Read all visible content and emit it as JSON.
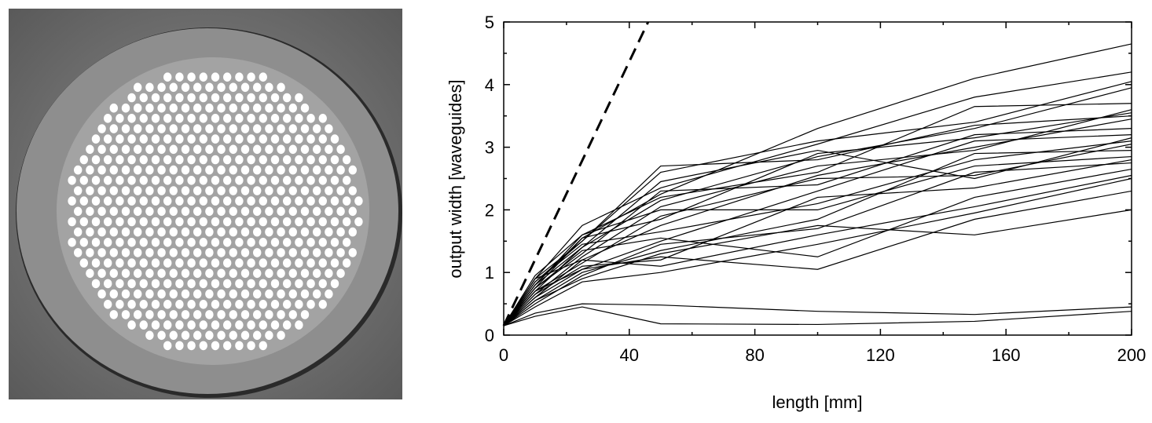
{
  "figure": {
    "photo": {
      "description_name": "fiber-cross-section",
      "background_color": "#7b7b7b",
      "cladding_color": "#8a8a8a",
      "core_array_color": "#a2a2a2",
      "waveguide_color": "#ffffff"
    }
  },
  "chart_data": {
    "type": "line",
    "title": "",
    "xlabel": "length [mm]",
    "ylabel": "output width [waveguides]",
    "xlim": [
      0,
      200
    ],
    "ylim": [
      0,
      5
    ],
    "xticks": [
      0,
      40,
      80,
      120,
      160,
      200
    ],
    "yticks": [
      0,
      1,
      2,
      3,
      4,
      5
    ],
    "grid": false,
    "legend": "none",
    "x": [
      0,
      10,
      25,
      50,
      100,
      150,
      200
    ],
    "reference_line": {
      "style": "dashed",
      "x": [
        0,
        46
      ],
      "y": [
        0.15,
        5.0
      ]
    },
    "series": [
      {
        "values": [
          0.15,
          0.75,
          1.55,
          2.25,
          3.3,
          4.1,
          4.65
        ]
      },
      {
        "values": [
          0.15,
          0.9,
          1.75,
          2.35,
          3.05,
          3.8,
          4.2
        ]
      },
      {
        "values": [
          0.15,
          0.85,
          1.5,
          2.6,
          3.1,
          3.4,
          4.05
        ]
      },
      {
        "values": [
          0.15,
          0.7,
          1.4,
          2.15,
          2.85,
          3.3,
          3.95
        ]
      },
      {
        "values": [
          0.15,
          0.95,
          1.6,
          2.2,
          2.6,
          3.65,
          3.7
        ]
      },
      {
        "values": [
          0.15,
          0.8,
          1.55,
          1.85,
          2.9,
          3.15,
          3.55
        ]
      },
      {
        "values": [
          0.15,
          0.65,
          1.25,
          2.05,
          2.7,
          2.95,
          3.6
        ]
      },
      {
        "values": [
          0.15,
          0.9,
          1.2,
          1.75,
          2.55,
          3.0,
          3.45
        ]
      },
      {
        "values": [
          0.15,
          0.75,
          1.3,
          2.3,
          2.4,
          3.2,
          3.3
        ]
      },
      {
        "values": [
          0.15,
          0.6,
          1.05,
          1.5,
          2.3,
          3.1,
          3.2
        ]
      },
      {
        "values": [
          0.15,
          0.85,
          1.45,
          1.65,
          2.1,
          2.8,
          3.1
        ]
      },
      {
        "values": [
          0.15,
          0.7,
          1.15,
          1.9,
          2.5,
          2.55,
          3.05
        ]
      },
      {
        "values": [
          0.15,
          0.55,
          1.0,
          1.35,
          1.85,
          2.9,
          2.95
        ]
      },
      {
        "values": [
          0.15,
          0.8,
          1.6,
          2.0,
          2.0,
          2.7,
          2.85
        ]
      },
      {
        "values": [
          0.15,
          0.65,
          1.1,
          1.2,
          2.2,
          2.35,
          2.8
        ]
      },
      {
        "values": [
          0.15,
          0.5,
          0.95,
          1.45,
          1.7,
          2.6,
          2.75
        ]
      },
      {
        "values": [
          0.15,
          0.75,
          1.35,
          1.55,
          1.25,
          2.2,
          2.65
        ]
      },
      {
        "values": [
          0.15,
          0.6,
          1.2,
          1.1,
          1.6,
          2.05,
          2.55
        ]
      },
      {
        "values": [
          0.15,
          0.45,
          0.85,
          1.0,
          1.45,
          1.95,
          2.5
        ]
      },
      {
        "values": [
          0.15,
          0.7,
          1.05,
          1.25,
          1.05,
          1.85,
          2.3
        ]
      },
      {
        "values": [
          0.15,
          0.55,
          0.9,
          1.3,
          1.75,
          1.6,
          2.0
        ]
      },
      {
        "values": [
          0.15,
          0.9,
          1.5,
          2.7,
          2.8,
          3.35,
          3.5
        ]
      },
      {
        "values": [
          0.15,
          0.8,
          1.4,
          2.45,
          2.95,
          2.5,
          3.15
        ]
      },
      {
        "values": [
          0.15,
          0.35,
          0.5,
          0.48,
          0.38,
          0.33,
          0.45
        ]
      },
      {
        "values": [
          0.15,
          0.3,
          0.45,
          0.18,
          0.17,
          0.22,
          0.38
        ]
      }
    ]
  }
}
